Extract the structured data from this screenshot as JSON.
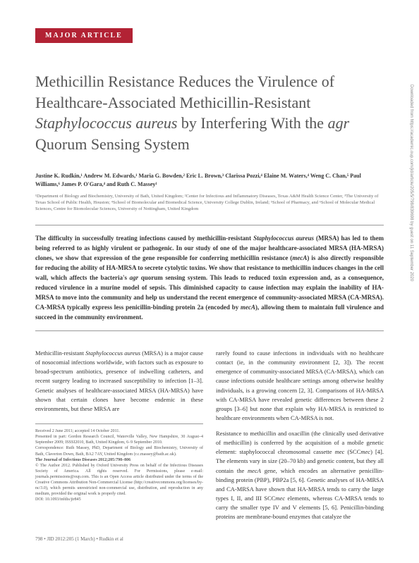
{
  "article_type": "MAJOR ARTICLE",
  "title_parts": {
    "p1": "Methicillin Resistance Reduces the Virulence of Healthcare-Associated Methicillin-Resistant ",
    "p2_italic": "Staphylococcus aureus",
    "p3": " by Interfering With the ",
    "p4_italic": "agr",
    "p5": " Quorum Sensing System"
  },
  "authors": "Justine K. Rudkin,¹ Andrew M. Edwards,¹ Maria G. Bowden,² Eric L. Brown,³ Clarissa Pozzi,⁴ Elaine M. Waters,⁴ Weng C. Chan,⁵ Paul Williams,⁶ James P. O'Gara,⁴ and Ruth C. Massey¹",
  "affiliations": "¹Department of Biology and Biochemistry, University of Bath, United Kingdom; ²Center for Infectious and Inflammatory Diseases, Texas A&M Health Science Center, ³The University of Texas School of Public Health, Houston; ⁴School of Biomolecular and Biomedical Science, University College Dublin, Ireland; ⁵School of Pharmacy, and ⁶School of Molecular Medical Sciences, Centre for Biomolecular Sciences, University of Nottingham, United Kingdom",
  "abstract": {
    "a1": "The difficulty in successfully treating infections caused by methicillin-resistant ",
    "a2_italic": "Staphylococcus aureus",
    "a3": " (MRSA) has led to them being referred to as highly virulent or pathogenic. In our study of one of the major healthcare-associated MRSA (HA-MRSA) clones, we show that expression of the gene responsible for conferring methicillin resistance (",
    "a4_italic": "mecA",
    "a5": ") is also directly responsible for reducing the ability of HA-MRSA to secrete cytolytic toxins. We show that resistance to methicillin induces changes in the cell wall, which affects the bacteria's ",
    "a6_italic": "agr",
    "a7": " quorum sensing system. This leads to reduced toxin expression and, as a consequence, reduced virulence in a murine model of sepsis. This diminished capacity to cause infection may explain the inability of HA-MRSA to move into the community and help us understand the recent emergence of community-associated MRSA (CA-MRSA). CA-MRSA typically express less penicillin-binding protein 2a (encoded by ",
    "a8_italic": "mecA",
    "a9": "), allowing them to maintain full virulence and succeed in the community environment."
  },
  "col1": {
    "p1a": "Methicillin-resistant ",
    "p1b_italic": "Staphylococcus aureus",
    "p1c": " (MRSA) is a major cause of nosocomial infections worldwide, with factors such as exposure to broad-spectrum antibiotics, presence of indwelling catheters, and recent surgery leading to increased susceptibility to infection [1–3]. Genetic analyses of healthcare-associated MRSA (HA-MRSA) have shown that certain clones have become endemic in these environments, but these MRSA are"
  },
  "col2": {
    "p1": "rarely found to cause infections in individuals with no healthcare contact (ie, in the community environment [2, 3]). The recent emergence of community-associated MRSA (CA-MRSA), which can cause infections outside healthcare settings among otherwise healthy individuals, is a growing concern [2, 3]. Comparisons of HA-MRSA with CA-MRSA have revealed genetic differences between these 2 groups [3–6] but none that explain why HA-MRSA is restricted to healthcare environments when CA-MRSA is not.",
    "p2a": "Resistance to methicillin and oxacillin (the clinically used derivative of methicillin) is conferred by the acquisition of a mobile genetic element: staphylococcal chromosomal cassette ",
    "p2b_italic": "mec",
    "p2c": " (SCC",
    "p2d_italic": "mec",
    "p2e": ") [4]. The elements vary in size (20–70 kb) and genetic content, but they all contain the ",
    "p2f_italic": "mecA",
    "p2g": " gene, which encodes an alternative penicillin-binding protein (PBP), PBP2a [5, 6]. Genetic analyses of HA-MRSA and CA-MRSA have shown that HA-MRSA tends to carry the large types I, II, and III SCC",
    "p2h_italic": "mec",
    "p2i": " elements, whereas CA-MRSA tends to carry the smaller type IV and V elements [5, 6]. Penicillin-binding proteins are membrane-bound enzymes that catalyze the"
  },
  "footnote": {
    "received": "Received 2 June 2011; accepted 14 October 2011.",
    "presented": "Presented in part: Gordon Research Council, Waterville Valley, New Hampshire, 30 August–4 September 2009; ISSSI2010, Bath, United Kingdom, 6–9 September 2010.",
    "correspondence": "Correspondence: Ruth Massey, PhD, Department of Biology and Biochemistry, University of Bath, Claverton Down, Bath, BA2 7AY, United Kingdom (r.c.massey@bath.ac.uk).",
    "journal": "The Journal of Infectious Diseases   2012;205:798–806",
    "copyright": "© The Author 2012. Published by Oxford University Press on behalf of the Infectious Diseases Society of America. All rights reserved. For Permissions, please e-mail: journals.permissions@oup.com. This is an Open Access article distributed under the terms of the Creative Commons Attribution Non-Commercial License (http://creativecommons.org/licenses/by-nc/3.0), which permits unrestricted non-commercial use, distribution, and reproduction in any medium, provided the original work is properly cited.",
    "doi": "DOI: 10.1093/infdis/jir845"
  },
  "footer": "798 • JID 2012:205 (1 March) • Rudkin et al",
  "sidenote": "Downloaded from https://academic.oup.com/jid/article/205/5/798/839698 by guest on 11 September 2020",
  "colors": {
    "article_type_bg": "#b22234",
    "title_color": "#555555",
    "text_color": "#333333"
  },
  "typography": {
    "title_fontsize": 22,
    "body_fontsize": 8.5,
    "abstract_fontsize": 9,
    "authors_fontsize": 8,
    "affiliations_fontsize": 6.5,
    "footnote_fontsize": 6
  }
}
